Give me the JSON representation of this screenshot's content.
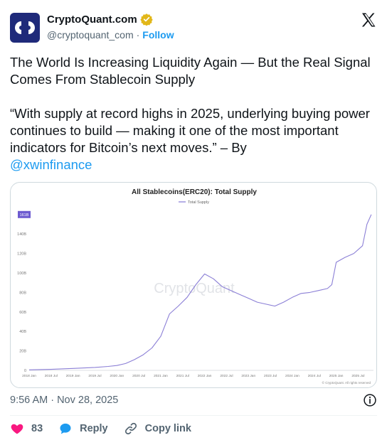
{
  "author": {
    "display_name": "CryptoQuant.com",
    "handle": "@cryptoquant_com",
    "separator": "·",
    "follow_label": "Follow"
  },
  "tweet": {
    "headline": "The World Is Increasing Liquidity Again — But the Real Signal Comes From Stablecoin Supply",
    "quote": "“With supply at record highs in 2025, underlying buying power continues to build — making it one of the most important indicators for Bitcoin’s next moves.” – By",
    "mention": "@xwinfinance"
  },
  "chart_data": {
    "type": "line",
    "title": "All Stablecoins(ERC20): Total Supply",
    "legend": "Total Supply",
    "legend_position": "top-center",
    "watermark": "CryptoQuant",
    "credit": "© CryptoQuant. All rights reserved",
    "current_value_label": "161B",
    "ylim": [
      0,
      165
    ],
    "yticks": [
      0,
      20,
      40,
      60,
      80,
      100,
      120,
      140
    ],
    "ytick_labels": [
      "0",
      "20B",
      "40B",
      "60B",
      "80B",
      "100B",
      "120B",
      "140B"
    ],
    "xlim": [
      2018.0,
      2025.85
    ],
    "xticks": [
      2018.0,
      2018.5,
      2019.0,
      2019.5,
      2020.0,
      2020.5,
      2021.0,
      2021.5,
      2022.0,
      2022.5,
      2023.0,
      2023.5,
      2024.0,
      2024.5,
      2025.0,
      2025.5
    ],
    "xtick_labels": [
      "2018 Jan",
      "2018 Jul",
      "2019 Jan",
      "2019 Jul",
      "2020 Jan",
      "2020 Jul",
      "2021 Jan",
      "2021 Jul",
      "2022 Jan",
      "2022 Jul",
      "2023 Jan",
      "2023 Jul",
      "2024 Jan",
      "2024 Jul",
      "2025 Jan",
      "2025 Jul"
    ],
    "grid": false,
    "series": [
      {
        "color": "#8b7fd6",
        "x": [
          2018.0,
          2018.5,
          2019.0,
          2019.5,
          2019.8,
          2020.0,
          2020.2,
          2020.4,
          2020.6,
          2020.8,
          2021.0,
          2021.2,
          2021.4,
          2021.6,
          2021.8,
          2022.0,
          2022.2,
          2022.4,
          2022.6,
          2022.8,
          2023.0,
          2023.2,
          2023.4,
          2023.6,
          2023.8,
          2024.0,
          2024.2,
          2024.4,
          2024.6,
          2024.8,
          2024.9,
          2025.0,
          2025.2,
          2025.4,
          2025.6,
          2025.7,
          2025.8
        ],
        "y": [
          0.5,
          1,
          2,
          3,
          4,
          5,
          7,
          11,
          16,
          23,
          35,
          58,
          66,
          75,
          88,
          99,
          94,
          86,
          82,
          78,
          74,
          70,
          68,
          66,
          70,
          75,
          79,
          80,
          82,
          84,
          88,
          111,
          116,
          120,
          128,
          150,
          160
        ]
      }
    ]
  },
  "timestamp": "9:56 AM · Nov 28, 2025",
  "actions": {
    "like_count": "83",
    "reply_label": "Reply",
    "copy_link_label": "Copy link"
  }
}
